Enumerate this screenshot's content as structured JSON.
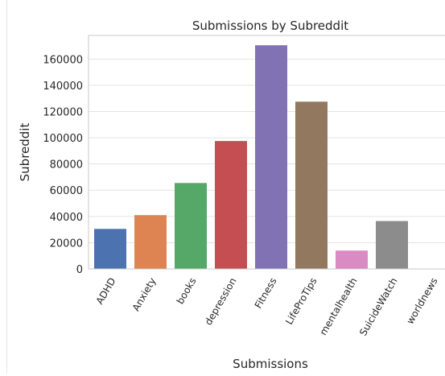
{
  "chart_data": {
    "type": "bar",
    "title": "Submissions by Subreddit",
    "xlabel": "Submissions",
    "ylabel": "Subreddit",
    "categories": [
      "ADHD",
      "Anxiety",
      "books",
      "depression",
      "Fitness",
      "LifeProTips",
      "mentalhealth",
      "SuicideWatch",
      "worldnews"
    ],
    "values": [
      30500,
      41000,
      65500,
      97500,
      170500,
      127500,
      14000,
      36500,
      0
    ],
    "colors": [
      "#4c72b0",
      "#dd8452",
      "#55a868",
      "#c44e52",
      "#8172b3",
      "#937860",
      "#da8bc3",
      "#8c8c8c",
      "#ccb974"
    ],
    "ylim": [
      0,
      178000
    ],
    "yticks": [
      0,
      20000,
      40000,
      60000,
      80000,
      100000,
      120000,
      140000,
      160000
    ],
    "ytick_labels": [
      "0",
      "20000",
      "40000",
      "60000",
      "80000",
      "100000",
      "120000",
      "140000",
      "160000"
    ],
    "grid": "y-major",
    "legend": "none"
  }
}
